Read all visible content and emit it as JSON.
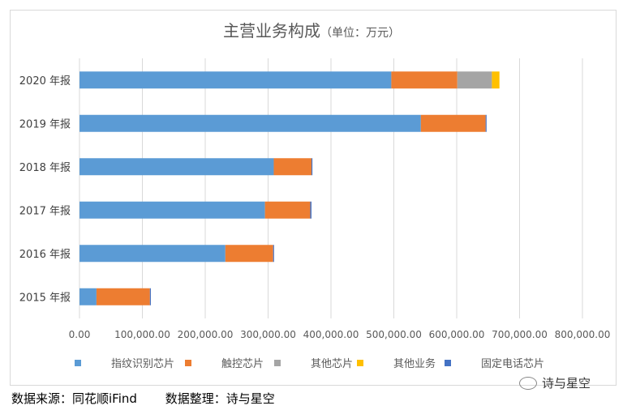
{
  "title": "主营业务构成",
  "title_unit": "（单位：万元）",
  "footer": {
    "source": "数据来源：同花顺iFind",
    "organizer": "数据整理：诗与星空"
  },
  "watermark": "诗与星空",
  "chart_data": {
    "type": "bar",
    "orientation": "horizontal",
    "stacked": true,
    "title": "主营业务构成（单位：万元）",
    "categories": [
      "2015 年报",
      "2016 年报",
      "2017 年报",
      "2018 年报",
      "2019 年报",
      "2020 年报"
    ],
    "series": [
      {
        "name": "指纹识别芯片",
        "color": "#5b9bd5",
        "values": [
          27000,
          232000,
          295000,
          309000,
          543000,
          496000
        ]
      },
      {
        "name": "触控芯片",
        "color": "#ed7d31",
        "values": [
          85000,
          76000,
          72000,
          60000,
          103000,
          105000
        ]
      },
      {
        "name": "其他芯片",
        "color": "#a5a5a5",
        "values": [
          0,
          0,
          0,
          0,
          0,
          55000
        ]
      },
      {
        "name": "其他业务",
        "color": "#ffc000",
        "values": [
          0,
          0,
          0,
          0,
          0,
          12000
        ]
      },
      {
        "name": "固定电话芯片",
        "color": "#4472c4",
        "values": [
          1500,
          1500,
          2000,
          1500,
          1500,
          0
        ]
      }
    ],
    "xlim": [
      0,
      800000
    ],
    "xticks": [
      "0.00",
      "100,000.00",
      "200,000.00",
      "300,000.00",
      "400,000.00",
      "500,000.00",
      "600,000.00",
      "700,000.00",
      "800,000.00"
    ],
    "grid": true,
    "legend": "bottom"
  }
}
